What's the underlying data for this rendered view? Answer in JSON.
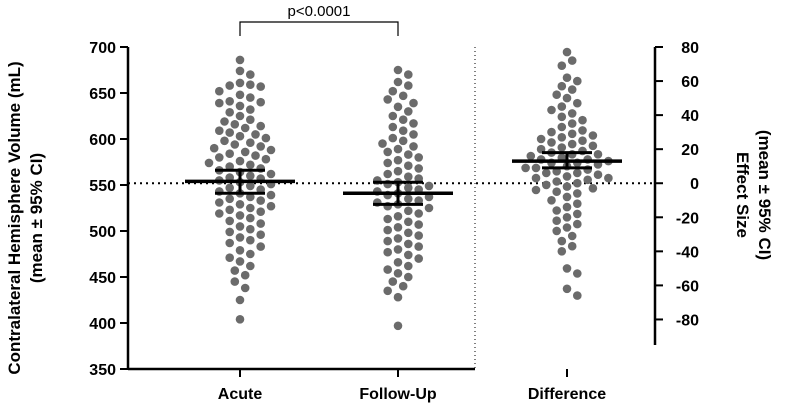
{
  "chart_data": {
    "type": "scatter",
    "title": "",
    "left_axis": {
      "label_line1": "Contralateral Hemisphere Volume (mL)",
      "label_line2": "(mean ± 95% CI)",
      "ylim": [
        350,
        700
      ],
      "ticks": [
        350,
        400,
        450,
        500,
        550,
        600,
        650,
        700
      ]
    },
    "right_axis": {
      "label_line1": "Effect Size",
      "label_line2": "(mean ± 95% CI)",
      "ylim": [
        -95,
        80
      ],
      "ticks": [
        -80,
        -60,
        -40,
        -20,
        0,
        20,
        40,
        60,
        80
      ],
      "tick_labels": [
        "-80",
        "-60",
        "-40",
        "-20",
        "0",
        "20",
        "40",
        "60",
        "80"
      ]
    },
    "categories": [
      "Acute",
      "Follow-Up",
      "Difference"
    ],
    "reference_line": {
      "axis": "right",
      "value": 0,
      "style": "dotted"
    },
    "significance": {
      "between": [
        "Acute",
        "Follow-Up"
      ],
      "label": "p<0.0001"
    },
    "series": [
      {
        "name": "Acute",
        "axis": "left",
        "mean": 554,
        "ci": [
          541,
          566
        ],
        "values": [
          686,
          674,
          670,
          661,
          659,
          658,
          657,
          652,
          648,
          645,
          641,
          640,
          639,
          636,
          632,
          629,
          625,
          621,
          619,
          616,
          614,
          612,
          609,
          607,
          605,
          603,
          601,
          598,
          596,
          594,
          592,
          590,
          588,
          586,
          584,
          582,
          580,
          578,
          576,
          574,
          572,
          570,
          568,
          566,
          564,
          562,
          560,
          558,
          557,
          555,
          553,
          551,
          549,
          547,
          545,
          543,
          541,
          539,
          537,
          535,
          533,
          531,
          529,
          527,
          525,
          523,
          521,
          519,
          517,
          514,
          511,
          508,
          505,
          502,
          499,
          496,
          493,
          490,
          487,
          483,
          479,
          475,
          471,
          467,
          462,
          457,
          452,
          445,
          438,
          425,
          404
        ]
      },
      {
        "name": "Follow-Up",
        "axis": "left",
        "mean": 541,
        "ci": [
          529,
          553
        ],
        "values": [
          675,
          670,
          662,
          658,
          652,
          647,
          643,
          639,
          635,
          630,
          625,
          621,
          617,
          613,
          609,
          605,
          601,
          598,
          595,
          592,
          589,
          586,
          583,
          580,
          577,
          574,
          571,
          568,
          565,
          562,
          559,
          557,
          555,
          553,
          551,
          549,
          547,
          545,
          543,
          541,
          539,
          537,
          535,
          533,
          531,
          529,
          527,
          525,
          522,
          519,
          516,
          513,
          510,
          507,
          504,
          501,
          498,
          495,
          492,
          489,
          486,
          483,
          480,
          477,
          474,
          470,
          466,
          462,
          458,
          454,
          450,
          445,
          440,
          435,
          428,
          397
        ]
      },
      {
        "name": "Difference",
        "axis": "right",
        "mean": 13,
        "ci": [
          9,
          18
        ],
        "values": [
          77,
          72,
          69,
          62,
          60,
          57,
          55,
          52,
          50,
          47,
          45,
          43,
          41,
          39,
          37,
          35,
          33,
          31,
          30,
          29,
          28,
          27,
          26,
          25,
          24,
          23,
          22,
          21,
          20,
          19,
          18,
          17,
          17,
          16,
          15,
          14,
          14,
          13,
          12,
          12,
          11,
          10,
          9,
          9,
          8,
          7,
          6,
          6,
          5,
          4,
          3,
          3,
          2,
          1,
          0,
          -1,
          -2,
          -3,
          -4,
          -5,
          -6,
          -8,
          -10,
          -12,
          -14,
          -16,
          -18,
          -20,
          -22,
          -24,
          -26,
          -28,
          -31,
          -34,
          -37,
          -40,
          -50,
          -53,
          -62,
          -66
        ]
      }
    ]
  }
}
